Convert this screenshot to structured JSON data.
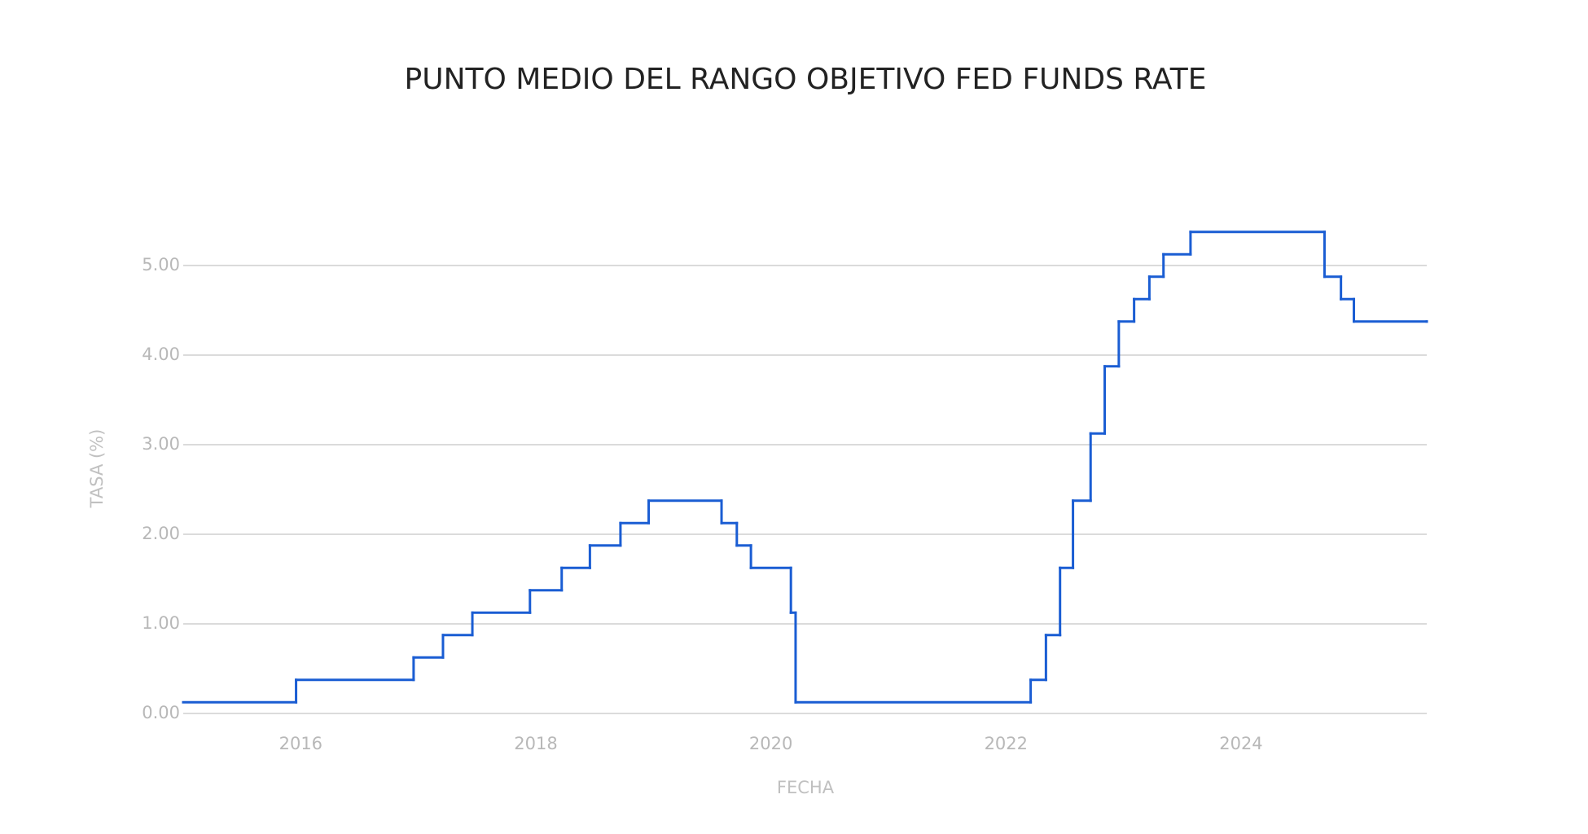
{
  "chart_data": {
    "type": "line",
    "step": true,
    "title": "PUNTO MEDIO DEL RANGO OBJETIVO FED FUNDS RATE",
    "x_label": "FECHA",
    "y_label": "TASA (%)",
    "x": [
      2015.0,
      2015.96,
      2016.96,
      2017.21,
      2017.46,
      2017.95,
      2018.22,
      2018.46,
      2018.72,
      2018.96,
      2019.58,
      2019.71,
      2019.83,
      2020.17,
      2020.21,
      2022.21,
      2022.34,
      2022.46,
      2022.57,
      2022.72,
      2022.84,
      2022.96,
      2023.09,
      2023.22,
      2023.34,
      2023.57,
      2024.71,
      2024.85,
      2024.96,
      2025.58
    ],
    "series": [
      {
        "name": "Fed Funds Rate",
        "color": "#1a5dd3",
        "values": [
          0.125,
          0.375,
          0.625,
          0.875,
          1.125,
          1.375,
          1.625,
          1.875,
          2.125,
          2.375,
          2.125,
          1.875,
          1.625,
          1.125,
          0.125,
          0.375,
          0.875,
          1.625,
          2.375,
          3.125,
          3.875,
          4.375,
          4.625,
          4.875,
          5.125,
          5.375,
          4.875,
          4.625,
          4.375,
          4.375
        ]
      }
    ],
    "xlim": [
      2015.0,
      2025.58
    ],
    "xticks": [
      2016,
      2018,
      2020,
      2022,
      2024
    ],
    "ylim": [
      0,
      5.5
    ],
    "yticks": [
      {
        "value": 0,
        "label": "0.00"
      },
      {
        "value": 1,
        "label": "1.00"
      },
      {
        "value": 2,
        "label": "2.00"
      },
      {
        "value": 3,
        "label": "3.00"
      },
      {
        "value": 4,
        "label": "4.00"
      },
      {
        "value": 5,
        "label": "5.00"
      }
    ],
    "grid": true
  }
}
